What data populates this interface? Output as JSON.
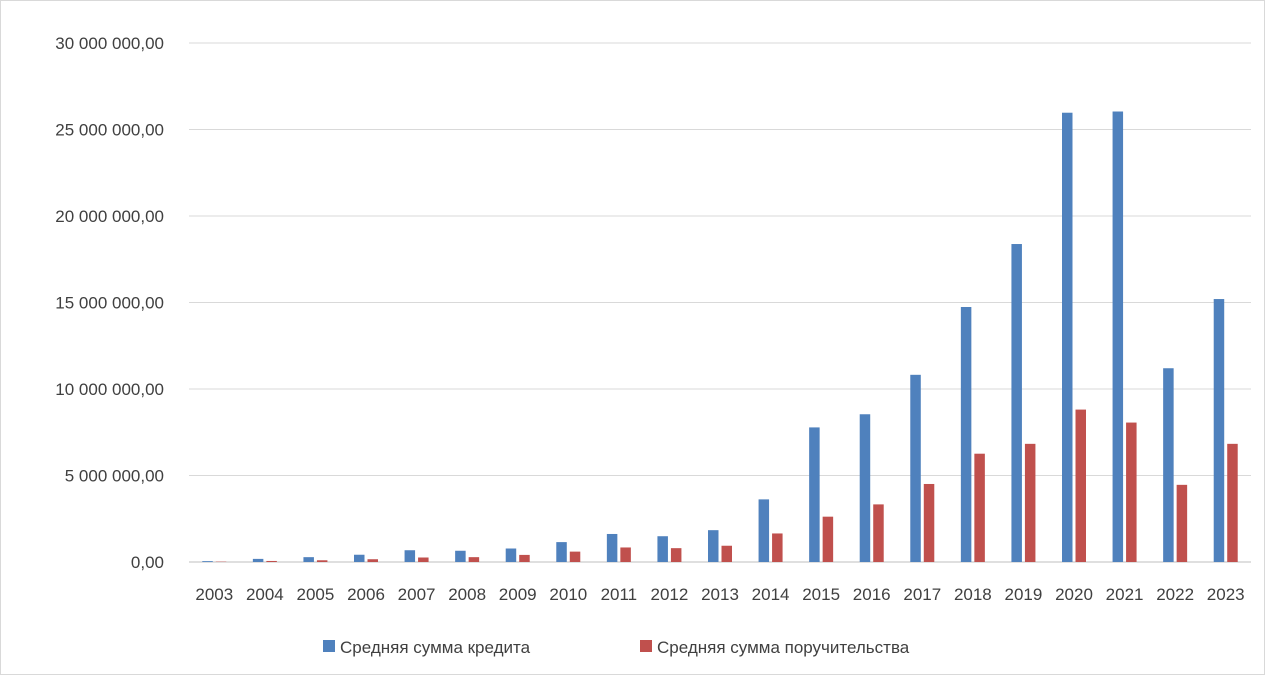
{
  "chart_data": {
    "type": "bar",
    "categories": [
      "2003",
      "2004",
      "2005",
      "2006",
      "2007",
      "2008",
      "2009",
      "2010",
      "2011",
      "2012",
      "2013",
      "2014",
      "2015",
      "2016",
      "2017",
      "2018",
      "2019",
      "2020",
      "2021",
      "2022",
      "2023"
    ],
    "series": [
      {
        "name": "Средняя сумма кредита",
        "color": "#4f81bd",
        "values": [
          50000,
          180000,
          280000,
          420000,
          680000,
          650000,
          780000,
          1150000,
          1620000,
          1490000,
          1840000,
          3620000,
          7780000,
          8540000,
          10820000,
          14740000,
          18380000,
          25970000,
          26040000,
          11200000,
          15200000
        ]
      },
      {
        "name": "Средняя сумма поручительства",
        "color": "#c0504d",
        "values": [
          20000,
          60000,
          100000,
          160000,
          260000,
          280000,
          410000,
          600000,
          840000,
          800000,
          940000,
          1650000,
          2620000,
          3330000,
          4510000,
          6260000,
          6830000,
          8810000,
          8060000,
          4460000,
          6830000
        ]
      }
    ],
    "y_ticks": [
      "0,00",
      "5 000 000,00",
      "10 000 000,00",
      "15 000 000,00",
      "20 000 000,00",
      "25 000 000,00",
      "30 000 000,00"
    ],
    "ylim": [
      0,
      30000000
    ],
    "grid": true,
    "legend_position": "bottom"
  }
}
